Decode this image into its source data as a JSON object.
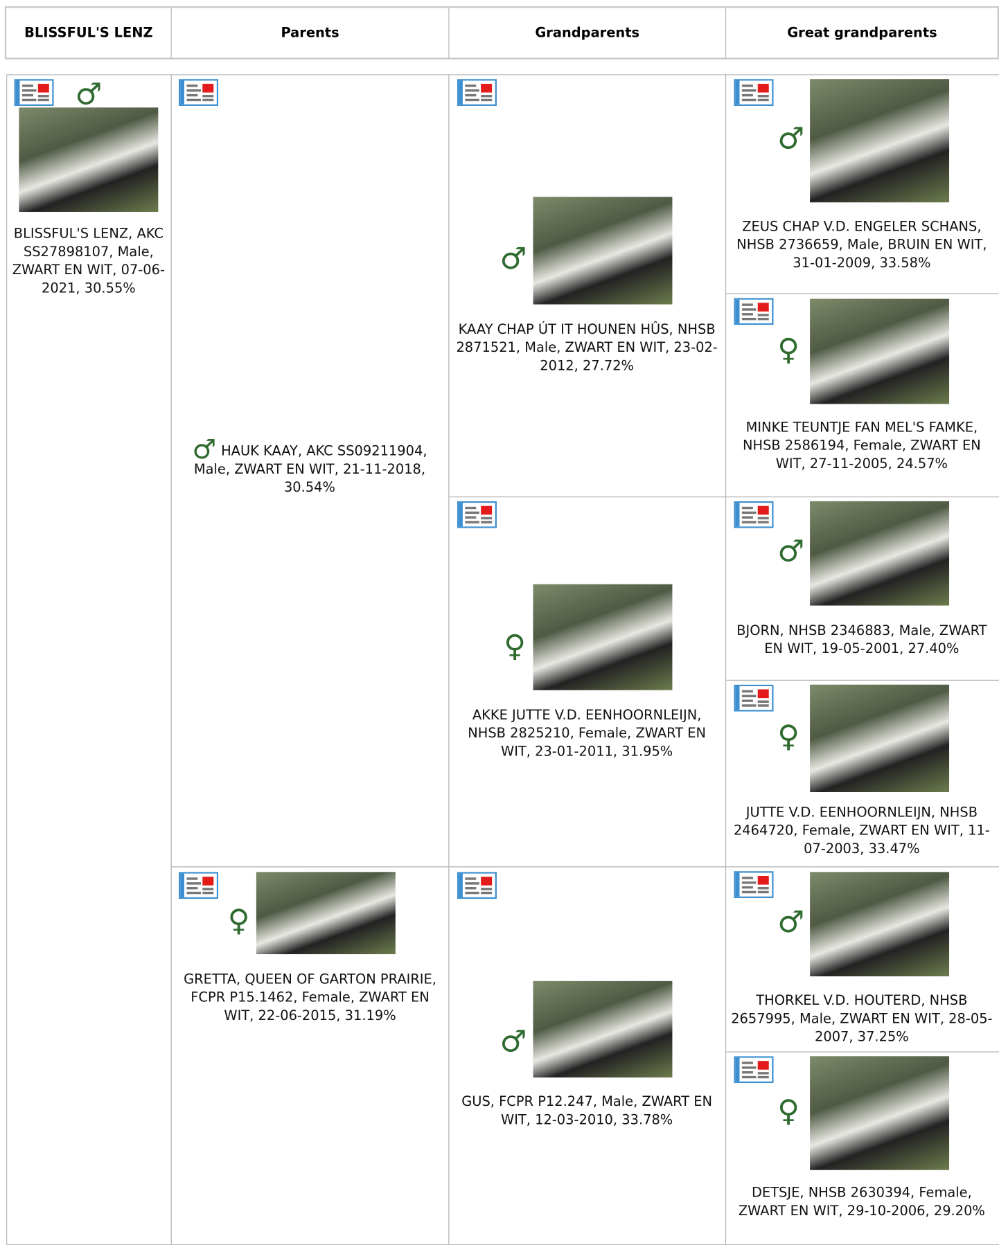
{
  "header": [
    "BLISSFUL'S LENZ",
    "Parents",
    "Grandparents",
    "Great grandparents"
  ],
  "subject": {
    "sex": "♂",
    "text": "BLISSFUL'S LENZ, AKC SS27898107, Male, ZWART EN WIT, 07-06-2021, 30.55%"
  },
  "parents": [
    {
      "sex": "♂",
      "text": "HAUK KAAY, AKC SS09211904, Male, ZWART EN WIT, 21-11-2018, 30.54%"
    },
    {
      "sex": "♀",
      "text": "GRETTA, QUEEN OF GARTON PRAIRIE, FCPR P15.1462, Female, ZWART EN WIT, 22-06-2015, 31.19%"
    }
  ],
  "grandparents": [
    {
      "sex": "♂",
      "text": "KAAY CHAP ÚT IT HOUNEN HÛS, NHSB 2871521, Male, ZWART EN WIT, 23-02-2012, 27.72%"
    },
    {
      "sex": "♀",
      "text": "AKKE JUTTE V.D. EENHOORNLEIJN, NHSB 2825210, Female, ZWART EN WIT, 23-01-2011, 31.95%"
    },
    {
      "sex": "♂",
      "text": "GUS, FCPR P12.247, Male, ZWART EN WIT, 12-03-2010, 33.78%"
    }
  ],
  "great_grandparents": [
    {
      "sex": "♂",
      "text": "ZEUS CHAP V.D. ENGELER SCHANS, NHSB 2736659, Male, BRUIN EN WIT, 31-01-2009, 33.58%"
    },
    {
      "sex": "♀",
      "text": "MINKE TEUNTJE FAN MEL'S FAMKE, NHSB 2586194, Female, ZWART EN WIT, 27-11-2005, 24.57%"
    },
    {
      "sex": "♂",
      "text": "BJORN, NHSB 2346883, Male, ZWART EN WIT, 19-05-2001, 27.40%"
    },
    {
      "sex": "♀",
      "text": "JUTTE V.D. EENHOORNLEIJN, NHSB 2464720, Female, ZWART EN WIT, 11-07-2003, 33.47%"
    },
    {
      "sex": "♂",
      "text": "THORKEL V.D. HOUTERD, NHSB 2657995, Male, ZWART EN WIT, 28-05-2007, 37.25%"
    },
    {
      "sex": "♀",
      "text": "DETSJE, NHSB 2630394, Female, ZWART EN WIT, 29-10-2006, 29.20%"
    }
  ]
}
